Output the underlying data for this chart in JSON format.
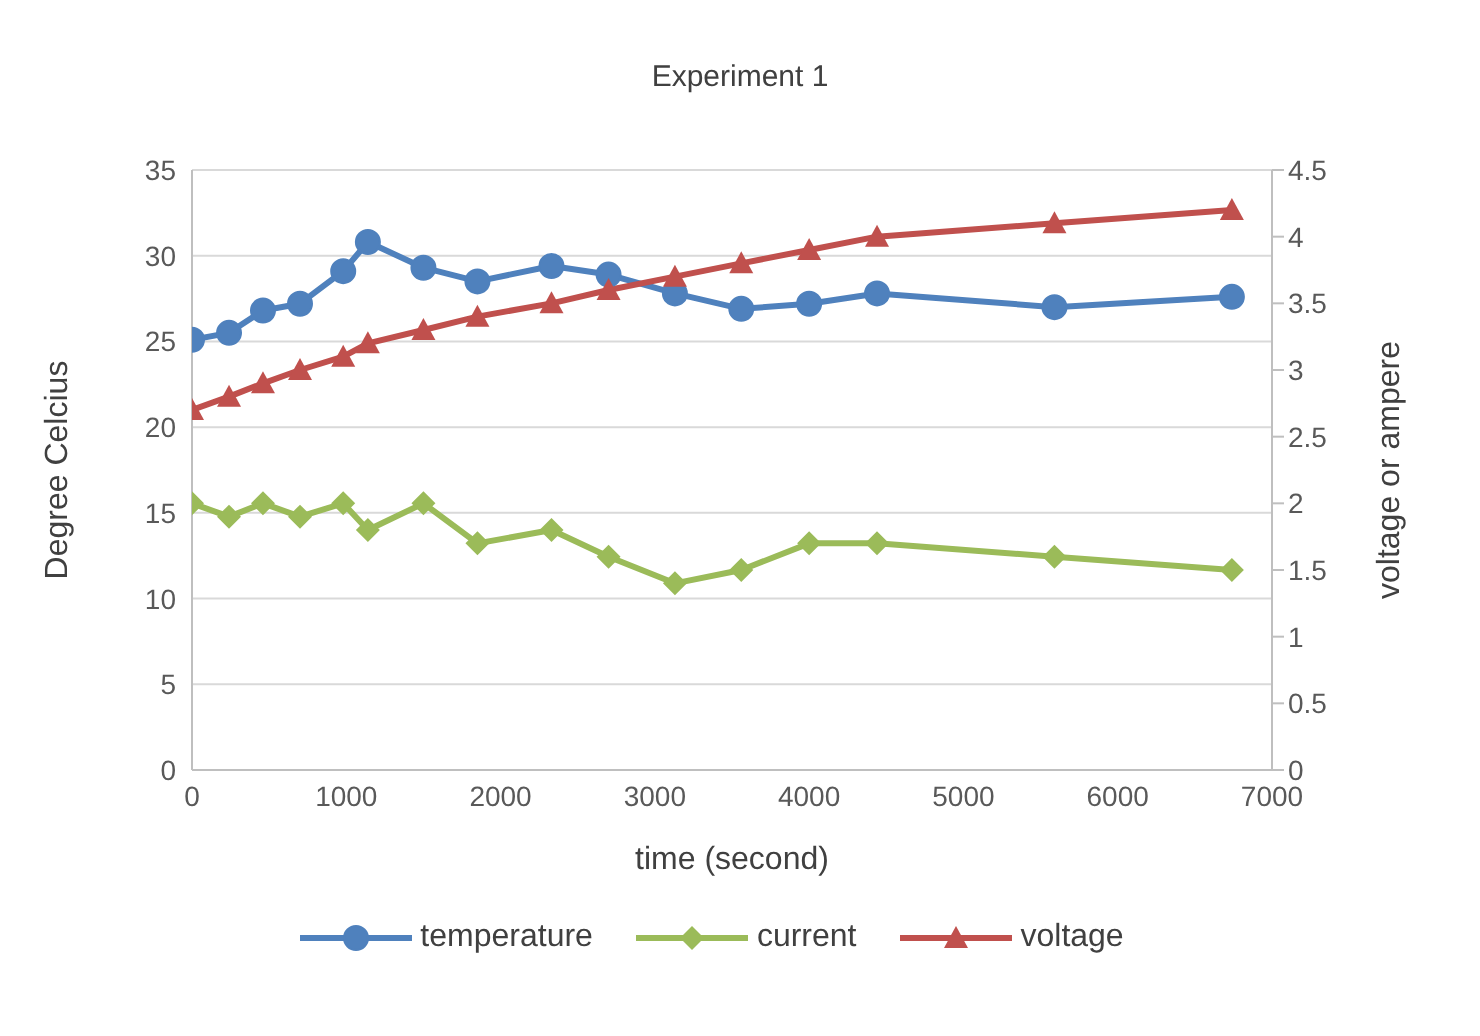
{
  "chart_data": {
    "type": "line",
    "title": "Experiment 1",
    "xlabel": "time (second)",
    "ylabel": "Degree Celcius",
    "y2label": "voltage or ampere",
    "x": [
      0,
      240,
      460,
      700,
      980,
      1140,
      1500,
      1850,
      2330,
      2700,
      3130,
      3560,
      4000,
      4440,
      5590,
      6740
    ],
    "series": [
      {
        "name": "temperature",
        "color": "#4f81bd",
        "marker": "circle",
        "values": [
          25.1,
          25.5,
          26.8,
          27.2,
          29.1,
          30.8,
          29.3,
          28.5,
          29.4,
          28.9,
          27.8,
          26.9,
          27.2,
          27.8,
          27.0,
          27.6
        ]
      },
      {
        "name": "current",
        "color": "#9bbb59",
        "marker": "diamond",
        "axis": "y2",
        "values": [
          2.0,
          1.9,
          2.0,
          1.9,
          2.0,
          1.8,
          2.0,
          1.7,
          1.8,
          1.6,
          1.4,
          1.5,
          1.7,
          1.7,
          1.6,
          1.5
        ]
      },
      {
        "name": "voltage",
        "color": "#c0504d",
        "marker": "triangle",
        "axis": "y2",
        "values": [
          2.7,
          2.8,
          2.9,
          3.0,
          3.1,
          3.2,
          3.3,
          3.4,
          3.5,
          3.6,
          3.7,
          3.8,
          3.9,
          4.0,
          4.1,
          4.2
        ]
      }
    ],
    "xlim": [
      0,
      7000
    ],
    "xticks": [
      0,
      1000,
      2000,
      3000,
      4000,
      5000,
      6000,
      7000
    ],
    "ylim": [
      0,
      35
    ],
    "yticks": [
      0,
      5,
      10,
      15,
      20,
      25,
      30,
      35
    ],
    "y2lim": [
      0,
      4.5
    ],
    "y2ticks": [
      0,
      0.5,
      1,
      1.5,
      2,
      2.5,
      3,
      3.5,
      4,
      4.5
    ],
    "grid": "y",
    "legend": "bottom"
  }
}
